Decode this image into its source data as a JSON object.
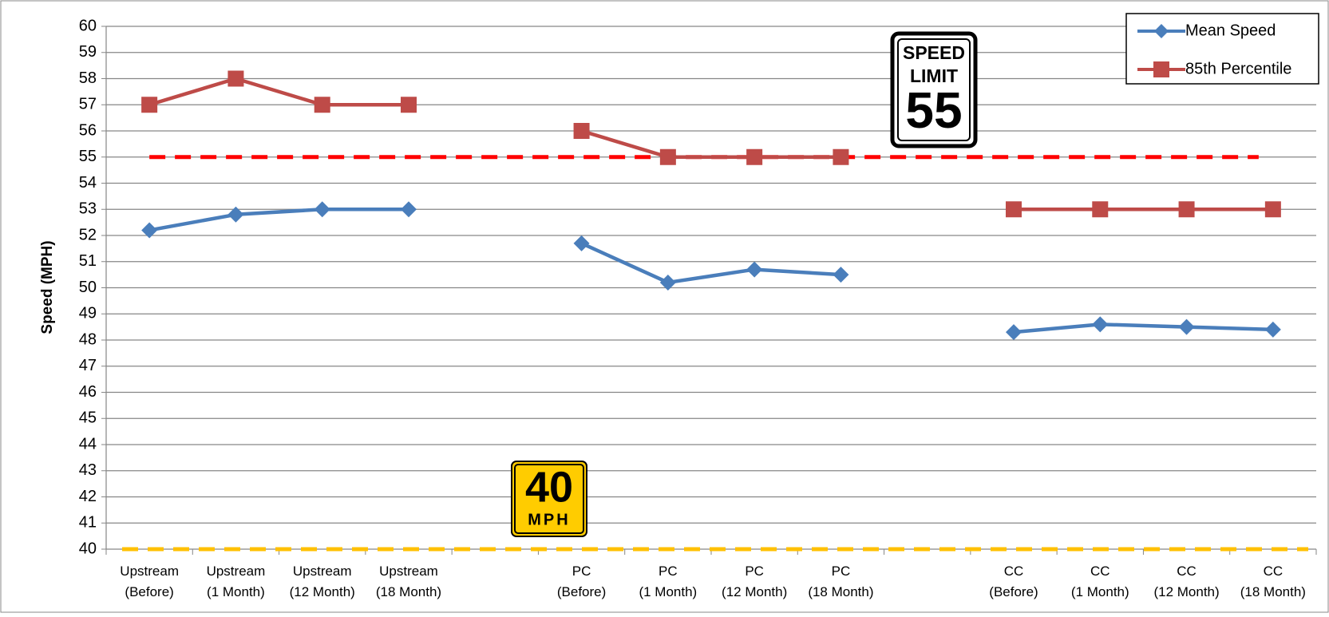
{
  "chart_data": {
    "type": "line",
    "ylabel": "Speed (MPH)",
    "categories": [
      "Upstream\n(Before)",
      "Upstream\n(1 Month)",
      "Upstream\n(12 Month)",
      "Upstream\n(18 Month)",
      null,
      "PC\n(Before)",
      "PC\n(1 Month)",
      "PC\n(12 Month)",
      "PC\n(18 Month)",
      null,
      "CC\n(Before)",
      "CC\n(1 Month)",
      "CC\n(12 Month)",
      "CC\n(18 Month)"
    ],
    "series": [
      {
        "name": "Mean Speed",
        "color": "#4a7ebb",
        "marker": "diamond",
        "values": [
          52.2,
          52.8,
          53,
          53,
          null,
          51.7,
          50.2,
          50.7,
          50.5,
          null,
          48.3,
          48.6,
          48.5,
          48.4
        ]
      },
      {
        "name": "85th Percentile",
        "color": "#be4b48",
        "marker": "square",
        "values": [
          57,
          58,
          57,
          57,
          null,
          56,
          55,
          55,
          55,
          null,
          53,
          53,
          53,
          53
        ]
      }
    ],
    "reference_lines": [
      {
        "value": 55,
        "color": "#ff0000"
      },
      {
        "value": 40,
        "color": "#ffc000"
      }
    ],
    "signs": [
      {
        "lines": [
          "SPEED",
          "LIMIT",
          "55"
        ]
      },
      {
        "lines": [
          "40",
          "MPH"
        ]
      }
    ],
    "ylim": [
      40,
      60
    ],
    "yticks": [
      40,
      41,
      42,
      43,
      44,
      45,
      46,
      47,
      48,
      49,
      50,
      51,
      52,
      53,
      54,
      55,
      56,
      57,
      58,
      59,
      60
    ],
    "grid": true,
    "legend": "top-right"
  }
}
